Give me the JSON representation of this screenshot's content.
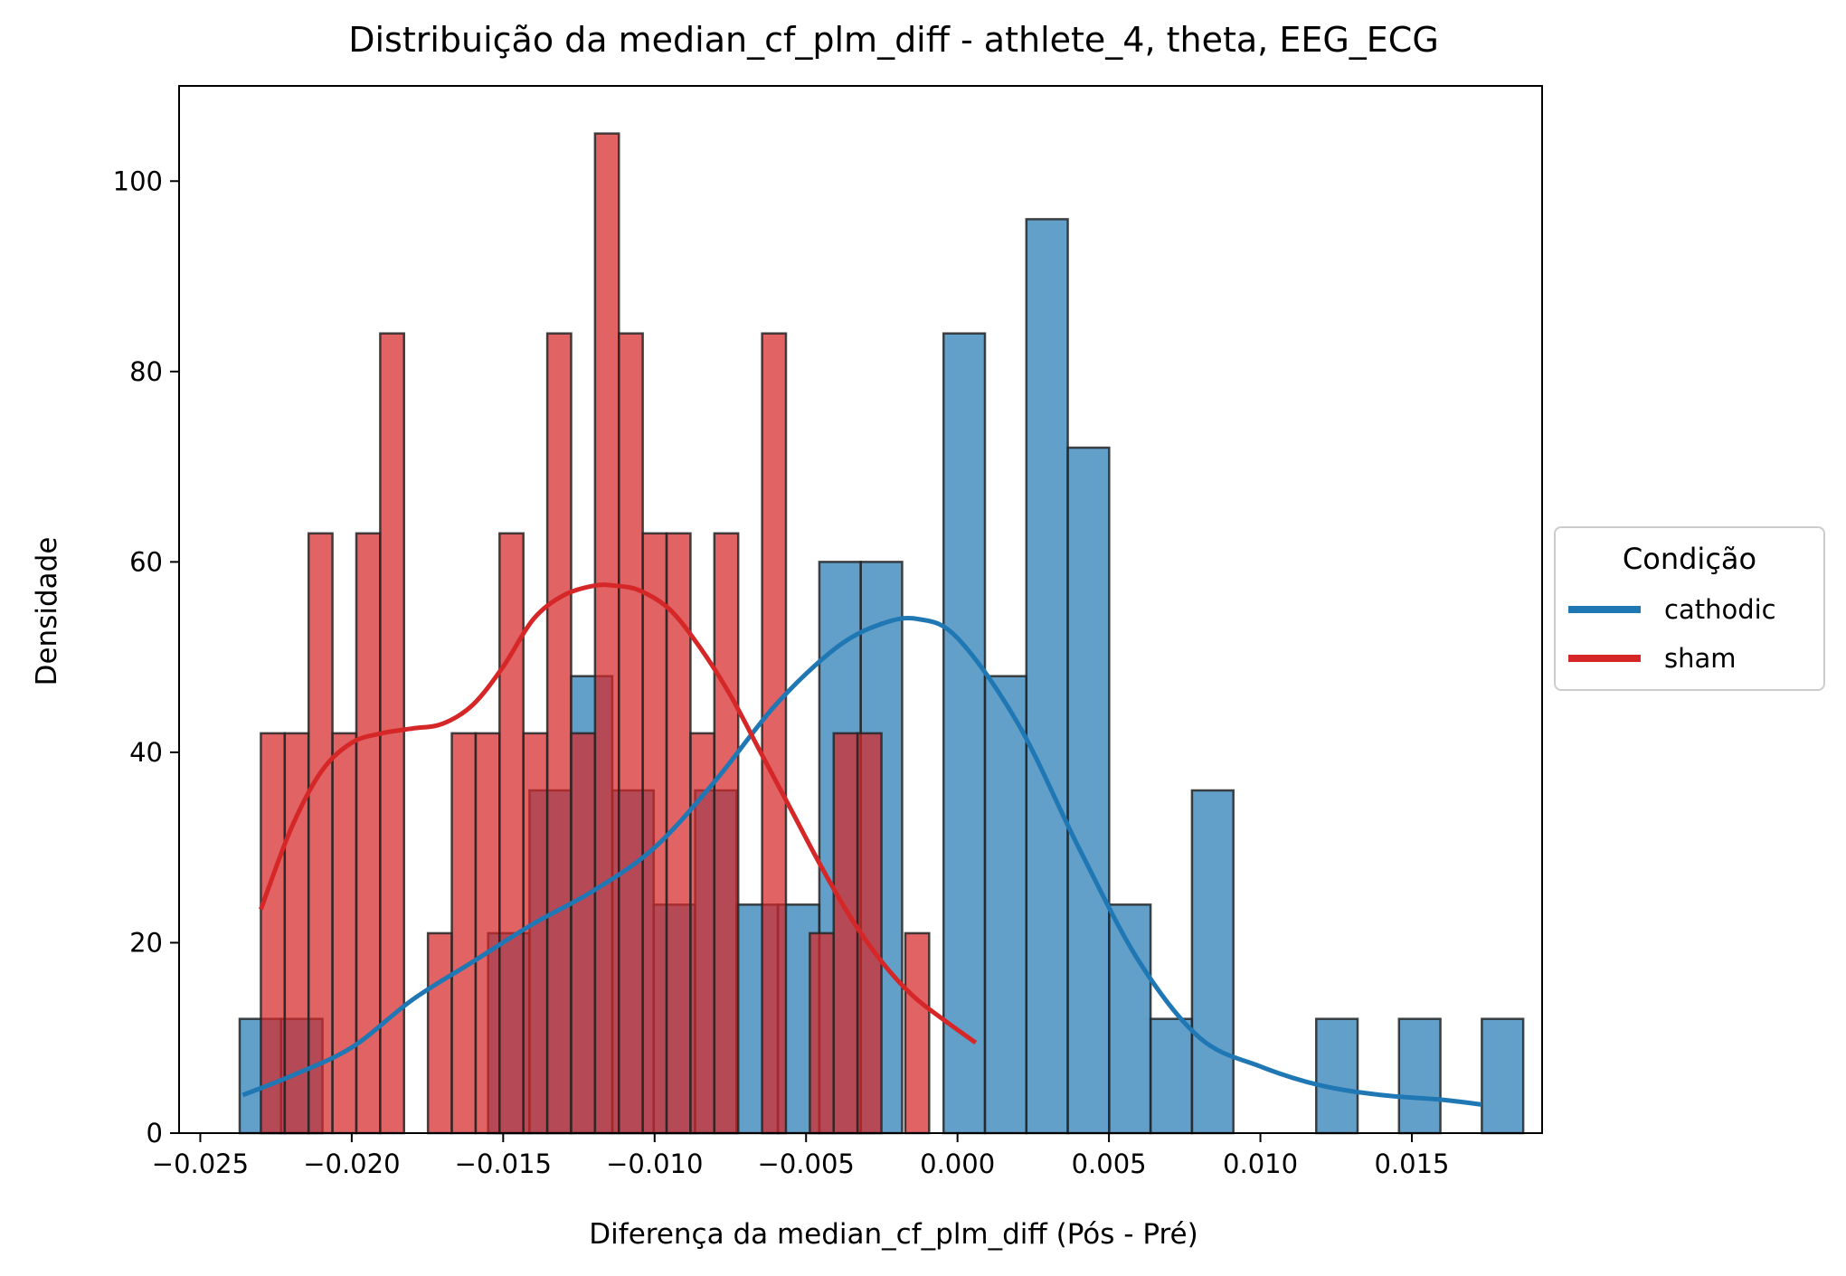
{
  "chart_data": {
    "type": "histogram",
    "title": "Distribuição da median_cf_plm_diff - athlete_4, theta, EEG_ECG",
    "xlabel": "Diferença da median_cf_plm_diff (Pós - Pré)",
    "ylabel": "Densidade",
    "xlim": [
      -0.0257,
      0.0193
    ],
    "ylim": [
      0,
      110
    ],
    "xticks": [
      -0.025,
      -0.02,
      -0.015,
      -0.01,
      -0.005,
      0.0,
      0.005,
      0.01,
      0.015
    ],
    "xtick_labels": [
      "−0.025",
      "−0.020",
      "−0.015",
      "−0.010",
      "−0.005",
      "0.000",
      "0.005",
      "0.010",
      "0.015"
    ],
    "yticks": [
      0,
      20,
      40,
      60,
      80,
      100
    ],
    "ytick_labels": [
      "0",
      "20",
      "40",
      "60",
      "80",
      "100"
    ],
    "grid": false,
    "legend": {
      "title": "Condição",
      "placement": "center-right-outside",
      "entries": [
        "cathodic",
        "sham"
      ]
    },
    "series": [
      {
        "name": "cathodic",
        "color": "#1f77b4",
        "bin_start": -0.0237,
        "bin_width": 0.001367,
        "densities": [
          12,
          12,
          0,
          0,
          0,
          0,
          21,
          36,
          48,
          36,
          24,
          36,
          24,
          24,
          60,
          60,
          0,
          84,
          48,
          96,
          72,
          24,
          12,
          36,
          0,
          0,
          12,
          0,
          12,
          0,
          12
        ],
        "kde": {
          "x": [
            -0.0236,
            -0.022,
            -0.02,
            -0.018,
            -0.016,
            -0.014,
            -0.012,
            -0.01,
            -0.008,
            -0.006,
            -0.004,
            -0.0025,
            -0.0013,
            0.0,
            0.002,
            0.004,
            0.006,
            0.008,
            0.01,
            0.012,
            0.014,
            0.016,
            0.0173
          ],
          "y": [
            4,
            6,
            9,
            14,
            18,
            22,
            25.5,
            30,
            37,
            45,
            51,
            53.5,
            54,
            52,
            43,
            30,
            18,
            10,
            7,
            5,
            4,
            3.5,
            3
          ]
        }
      },
      {
        "name": "sham",
        "color": "#d62728",
        "bin_start": -0.023,
        "bin_width": 0.000788,
        "densities": [
          42,
          42,
          63,
          42,
          63,
          84,
          0,
          21,
          42,
          42,
          63,
          42,
          84,
          42,
          105,
          84,
          63,
          63,
          42,
          63,
          0,
          84,
          0,
          21,
          42,
          42,
          0,
          21,
          0
        ],
        "kde": {
          "x": [
            -0.023,
            -0.022,
            -0.021,
            -0.02,
            -0.019,
            -0.018,
            -0.017,
            -0.016,
            -0.015,
            -0.014,
            -0.013,
            -0.012,
            -0.0113,
            -0.0105,
            -0.0095,
            -0.0085,
            -0.0075,
            -0.0065,
            -0.0055,
            -0.0045,
            -0.0035,
            -0.0025,
            -0.0015,
            -0.0005,
            0.0006
          ],
          "y": [
            23.5,
            32,
            38,
            41,
            42,
            42.5,
            43,
            45,
            49,
            54,
            56.5,
            57.5,
            57.5,
            57,
            55,
            51,
            46,
            40,
            34,
            28,
            22.5,
            18,
            14.5,
            12,
            9.5
          ]
        }
      }
    ]
  }
}
